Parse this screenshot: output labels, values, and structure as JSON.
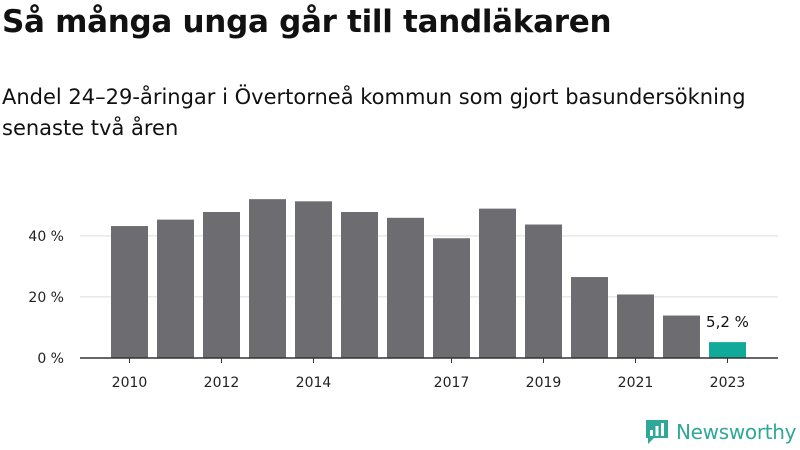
{
  "header": {
    "title": "Så många unga går till tandläkaren",
    "subtitle": "Andel 24–29-åringar i Övertorneå kommun som gjort basundersökning senaste två åren"
  },
  "brand": {
    "name": "Newsworthy",
    "color": "#2fa89a"
  },
  "chart_data": {
    "type": "bar",
    "categories": [
      "2010",
      "2011",
      "2012",
      "2013",
      "2014",
      "2015",
      "2016",
      "2017",
      "2018",
      "2019",
      "2020",
      "2021",
      "2022",
      "2023"
    ],
    "values": [
      43.2,
      45.3,
      47.8,
      52.0,
      51.3,
      47.8,
      45.9,
      39.2,
      48.9,
      43.7,
      26.5,
      20.8,
      13.9,
      5.2
    ],
    "ylim": [
      0,
      55
    ],
    "yticks": [
      0,
      20,
      40
    ],
    "ytick_labels": [
      "0 %",
      "20 %",
      "40 %"
    ],
    "xtick_labels": [
      "2010",
      "2012",
      "2014",
      "2017",
      "2019",
      "2021",
      "2023"
    ],
    "xtick_categories": [
      "2010",
      "2012",
      "2014",
      "2017",
      "2019",
      "2021",
      "2023"
    ],
    "highlight_category": "2023",
    "highlight_label": "5,2 %",
    "grid": true,
    "colors": {
      "bar": "#6d6c71",
      "highlight": "#11a99a",
      "grid": "#dddddd",
      "axis": "#333333"
    }
  }
}
